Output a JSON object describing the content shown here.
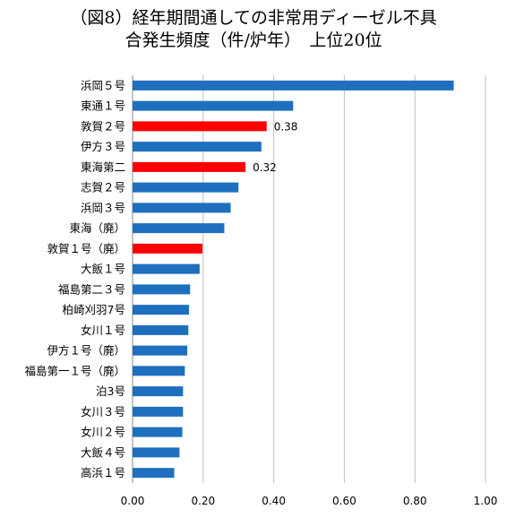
{
  "chart_data": {
    "type": "bar",
    "orientation": "horizontal",
    "title": "（図8）経年期間通しての非常用ディーゼル不具合発生頻度（件/炉年）　上位20位",
    "title_lines": [
      "（図8）経年期間通しての非常用ディーゼル不具",
      "合発生頻度（件/炉年）　上位20位"
    ],
    "xlabel": "",
    "ylabel": "",
    "xlim": [
      0,
      1.0
    ],
    "xticks": [
      "0.00",
      "0.20",
      "0.40",
      "0.60",
      "0.80",
      "1.00"
    ],
    "grid": "vertical",
    "legend": "none",
    "colors": {
      "default": "#1f6fbf",
      "highlight": "#ff0000"
    },
    "categories": [
      "浜岡５号",
      "東通１号",
      "敦賀２号",
      "伊方３号",
      "東海第二",
      "志賀２号",
      "浜岡３号",
      "東海（廃）",
      "敦賀１号（廃）",
      "大飯１号",
      "福島第二３号",
      "柏崎刈羽7号",
      "女川１号",
      "伊方１号（廃）",
      "福島第一１号（廃）",
      "泊3号",
      "女川３号",
      "女川２号",
      "大飯４号",
      "高浜１号"
    ],
    "values": [
      0.91,
      0.455,
      0.38,
      0.365,
      0.32,
      0.3,
      0.278,
      0.26,
      0.198,
      0.19,
      0.163,
      0.16,
      0.158,
      0.155,
      0.148,
      0.143,
      0.143,
      0.141,
      0.133,
      0.118
    ],
    "highlighted": [
      false,
      false,
      true,
      false,
      true,
      false,
      false,
      false,
      true,
      false,
      false,
      false,
      false,
      false,
      false,
      false,
      false,
      false,
      false,
      false
    ],
    "data_labels": [
      "",
      "",
      "0.38",
      "",
      "0.32",
      "",
      "",
      "",
      "",
      "",
      "",
      "",
      "",
      "",
      "",
      "",
      "",
      "",
      "",
      ""
    ]
  }
}
